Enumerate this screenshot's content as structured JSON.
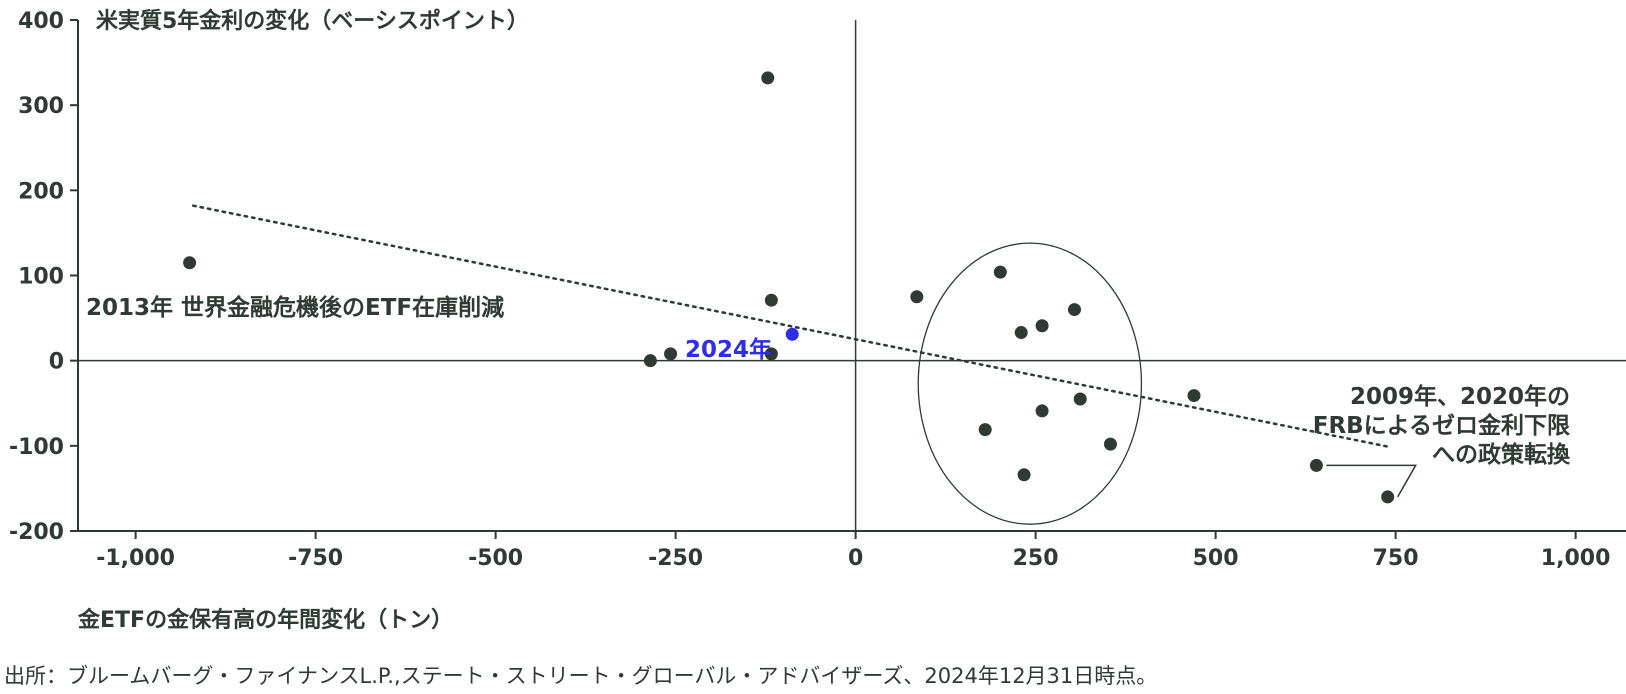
{
  "chart_data": {
    "type": "scatter",
    "title": "",
    "ylabel": "米実質5年金利の変化（ベーシスポイント）",
    "xlabel": "金ETFの金保有高の年間変化（トン）",
    "xlim": [
      -1080,
      1070
    ],
    "ylim": [
      -200,
      400
    ],
    "x_ticks": [
      -1000,
      -750,
      -500,
      -250,
      0,
      250,
      500,
      750,
      1000
    ],
    "x_tick_labels": [
      "-1,000",
      "-750",
      "-500",
      "-250",
      "0",
      "250",
      "500",
      "750",
      "1,000"
    ],
    "y_ticks": [
      400,
      300,
      200,
      100,
      0,
      -100,
      -200
    ],
    "y_tick_labels": [
      "400",
      "300",
      "200",
      "100",
      "0",
      "-100",
      "-200"
    ],
    "points": [
      {
        "x": -925,
        "y": 115
      },
      {
        "x": -122,
        "y": 332
      },
      {
        "x": -117,
        "y": 71
      },
      {
        "x": -285,
        "y": 0
      },
      {
        "x": -257,
        "y": 8
      },
      {
        "x": -117,
        "y": 8
      },
      {
        "x": 85,
        "y": 75
      },
      {
        "x": 201,
        "y": 104
      },
      {
        "x": 230,
        "y": 33
      },
      {
        "x": 259,
        "y": 41
      },
      {
        "x": 304,
        "y": 60
      },
      {
        "x": 180,
        "y": -81
      },
      {
        "x": 259,
        "y": -59
      },
      {
        "x": 312,
        "y": -45
      },
      {
        "x": 354,
        "y": -98
      },
      {
        "x": 234,
        "y": -134
      },
      {
        "x": 470,
        "y": -41
      },
      {
        "x": 640,
        "y": -123
      },
      {
        "x": 739,
        "y": -160
      }
    ],
    "highlight_point": {
      "x": -88,
      "y": 31,
      "label": "2024年",
      "color": "#2e2ee6"
    },
    "trendline": {
      "x1": -920,
      "y1": 182,
      "x2": 740,
      "y2": -101
    },
    "ellipse": {
      "cx": 242,
      "cy": -27,
      "rx": 155,
      "ry": 165
    },
    "annotations": {
      "left": "2013年 世界金融危機後のETF在庫削減",
      "right": [
        "2009年、2020年の",
        "FRBによるゼロ金利下限",
        "への政策転換"
      ]
    },
    "grid": false,
    "legend": "none",
    "colors": {
      "points": "#2f3a34",
      "highlight": "#2e2ee6",
      "axis": "#2f3a34"
    }
  },
  "source": "出所：ブルームバーグ・ファイナンスL.P.,ステート・ストリート・グローバル・アドバイザーズ、2024年12月31日時点。"
}
